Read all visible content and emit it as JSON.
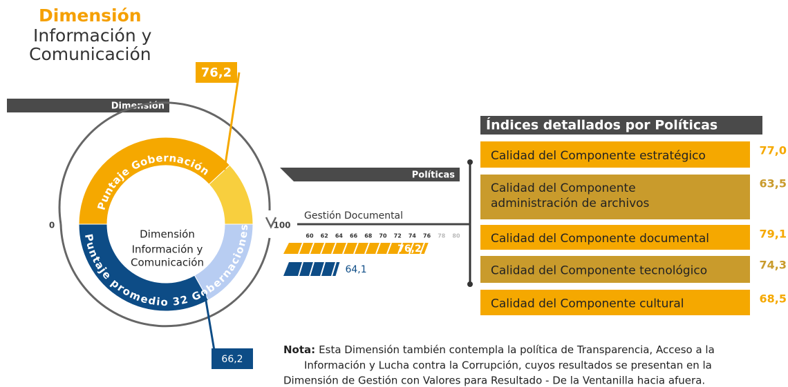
{
  "header": {
    "title": "Dimensión",
    "subtitle_lines": [
      "Información y",
      "Comunicación"
    ]
  },
  "chart_data": [
    {
      "type": "gauge",
      "label": "Dimensión",
      "center_lines": [
        "Dimensión",
        "Información y",
        "Comunicación"
      ],
      "xlim": [
        0,
        100
      ],
      "xticks": [
        0,
        100
      ],
      "series": [
        {
          "name": "Puntaje Gobernación",
          "color": "#f5a800",
          "rest_color": "#f8cf3e",
          "values": [
            76.2
          ],
          "value_labels": [
            "76,2"
          ]
        },
        {
          "name": "Puntaje promedio 32 Gobernaciones",
          "color": "#0d4c86",
          "rest_color": "#b8cdf2",
          "values": [
            66.2
          ],
          "value_labels": [
            "66,2"
          ]
        }
      ]
    },
    {
      "type": "bar",
      "label": "Políticas",
      "categories": [
        "Gestión Documental"
      ],
      "xlim": [
        60,
        80
      ],
      "xticks": [
        60,
        62,
        64,
        66,
        68,
        70,
        72,
        74,
        76,
        78,
        80
      ],
      "series": [
        {
          "color": "#f5a800",
          "values": [
            76.2
          ],
          "value_labels": [
            "76,2"
          ]
        },
        {
          "color": "#0d4c86",
          "values": [
            64.1
          ],
          "value_labels": [
            "64,1"
          ]
        }
      ]
    }
  ],
  "indices": {
    "title": "Índices detallados por Políticas",
    "rows": [
      {
        "label": [
          "Calidad del Componente estratégico"
        ],
        "value": "77,0",
        "color": "#f5a800"
      },
      {
        "label": [
          "Calidad del Componente",
          "administración de archivos"
        ],
        "value": "63,5",
        "color": "#c99b2c"
      },
      {
        "label": [
          "Calidad del Componente documental"
        ],
        "value": "79,1",
        "color": "#f5a800"
      },
      {
        "label": [
          "Calidad del Componente tecnológico"
        ],
        "value": "74,3",
        "color": "#c99b2c"
      },
      {
        "label": [
          "Calidad del Componente cultural"
        ],
        "value": "68,5",
        "color": "#f5a800"
      }
    ]
  },
  "note": {
    "label": "Nota:",
    "lines": [
      "Esta Dimensión también contempla la política de Transparencia, Acceso a la",
      "Información y Lucha contra la Corrupción, cuyos resultados se presentan en la",
      "Dimensión de Gestión con Valores para Resultado - De la Ventanilla hacia afuera."
    ]
  }
}
